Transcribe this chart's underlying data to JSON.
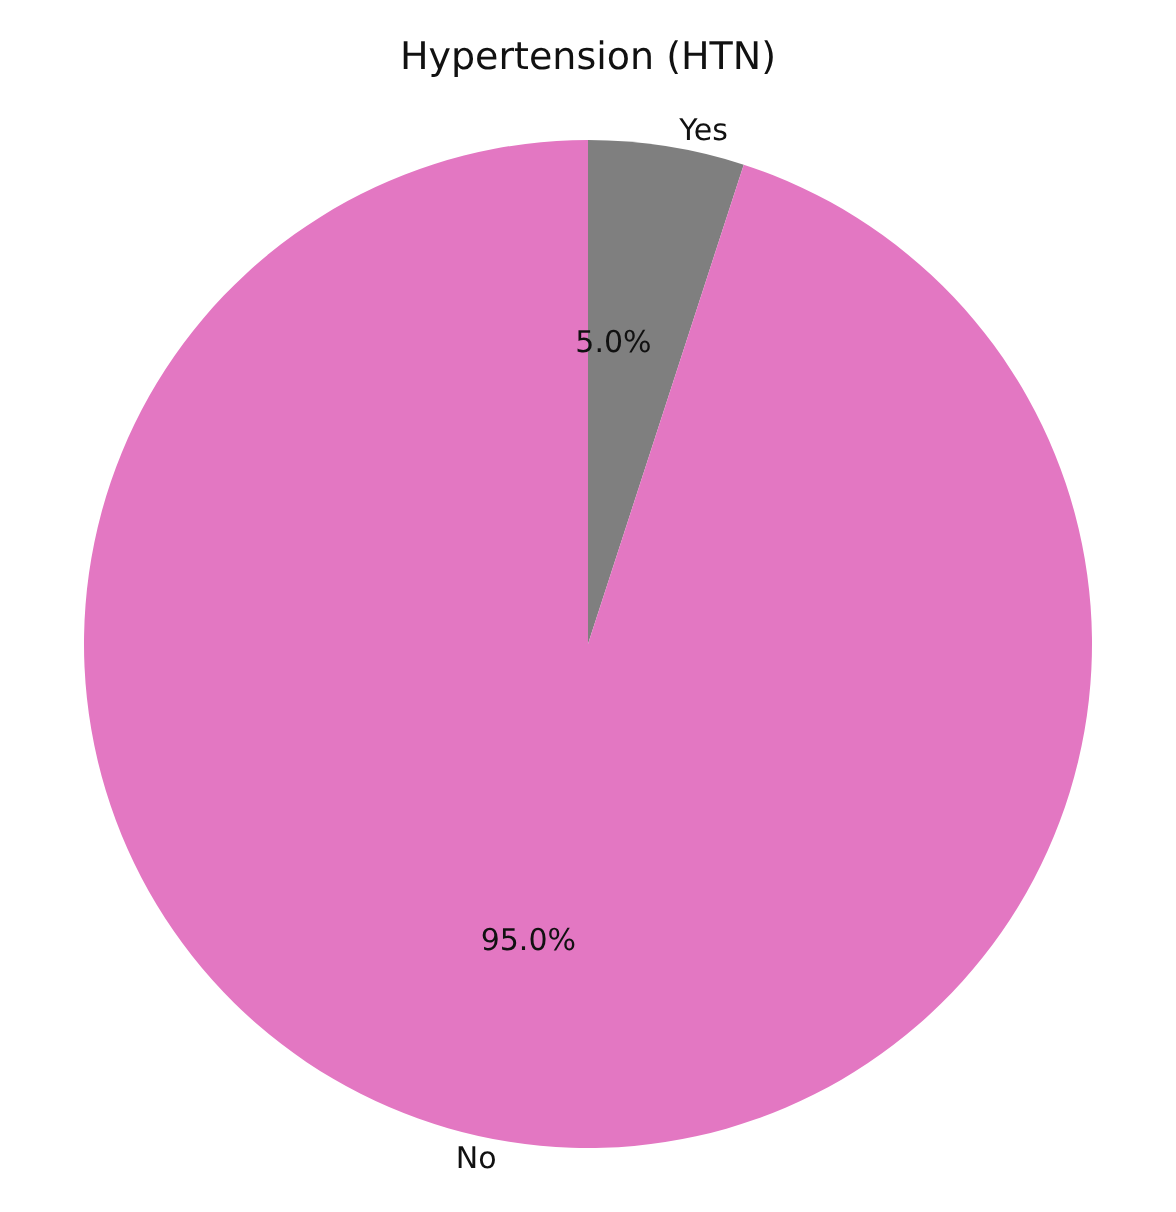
{
  "chart_data": {
    "type": "pie",
    "title": "Hypertension (HTN)",
    "categories": [
      "Yes",
      "No"
    ],
    "values": [
      5,
      95
    ],
    "colors": [
      "#7f7f7f",
      "#e377c2"
    ],
    "value_labels": [
      "5.0%",
      "95.0%"
    ],
    "legend": false
  }
}
